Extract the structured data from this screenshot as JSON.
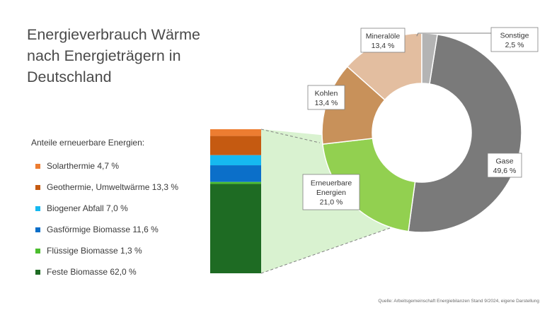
{
  "title_lines": [
    "Energieverbrauch Wärme",
    "nach Energieträgern in",
    "Deutschland"
  ],
  "legend_heading": "Anteile erneuerbare Energien:",
  "source": "Quelle: Arbeitsgemeinschaft Energiebilanzen Stand 9/2024, eigene Darstellung",
  "chart_data": [
    {
      "type": "pie",
      "variant": "donut",
      "title": "Energieverbrauch Wärme nach Energieträgern in Deutschland",
      "slices": [
        {
          "name": "Gase",
          "value": 49.6,
          "label_text": "49,6 %",
          "color": "#7a7a7a"
        },
        {
          "name": "Erneuerbare Energien",
          "value": 21.0,
          "label_text": "21,0 %",
          "color": "#92d050"
        },
        {
          "name": "Kohlen",
          "value": 13.4,
          "label_text": "13,4 %",
          "color": "#c8915a"
        },
        {
          "name": "Mineralöle",
          "value": 13.4,
          "label_text": "13,4 %",
          "color": "#e3bea0"
        },
        {
          "name": "Sonstige",
          "value": 2.5,
          "label_text": "2,5 %",
          "color": "#b4b4b4"
        }
      ]
    },
    {
      "type": "bar",
      "variant": "stacked-100",
      "title": "Anteile erneuerbare Energien:",
      "unit": "%",
      "segments": [
        {
          "name": "Solarthermie",
          "value": 4.7,
          "label": "Solarthermie 4,7 %",
          "color": "#ed7d31"
        },
        {
          "name": "Geothermie, Umweltwärme",
          "value": 13.3,
          "label": "Geothermie, Umweltwärme 13,3 %",
          "color": "#c55a11"
        },
        {
          "name": "Biogener Abfall",
          "value": 7.0,
          "label": "Biogener Abfall 7,0 %",
          "color": "#16b8f0"
        },
        {
          "name": "Gasförmige Biomasse",
          "value": 11.6,
          "label": "Gasförmige Biomasse 11,6 %",
          "color": "#0b6fc9"
        },
        {
          "name": "Flüssige Biomasse",
          "value": 1.3,
          "label": "Flüssige Biomasse 1,3 %",
          "color": "#4bbd2e"
        },
        {
          "name": "Feste Biomasse",
          "value": 62.0,
          "label": "Feste Biomasse 62,0 %",
          "color": "#1e6b23"
        }
      ]
    }
  ],
  "colors": {
    "highlight_fill": "#d9f2d0",
    "connector_line": "#808080"
  }
}
